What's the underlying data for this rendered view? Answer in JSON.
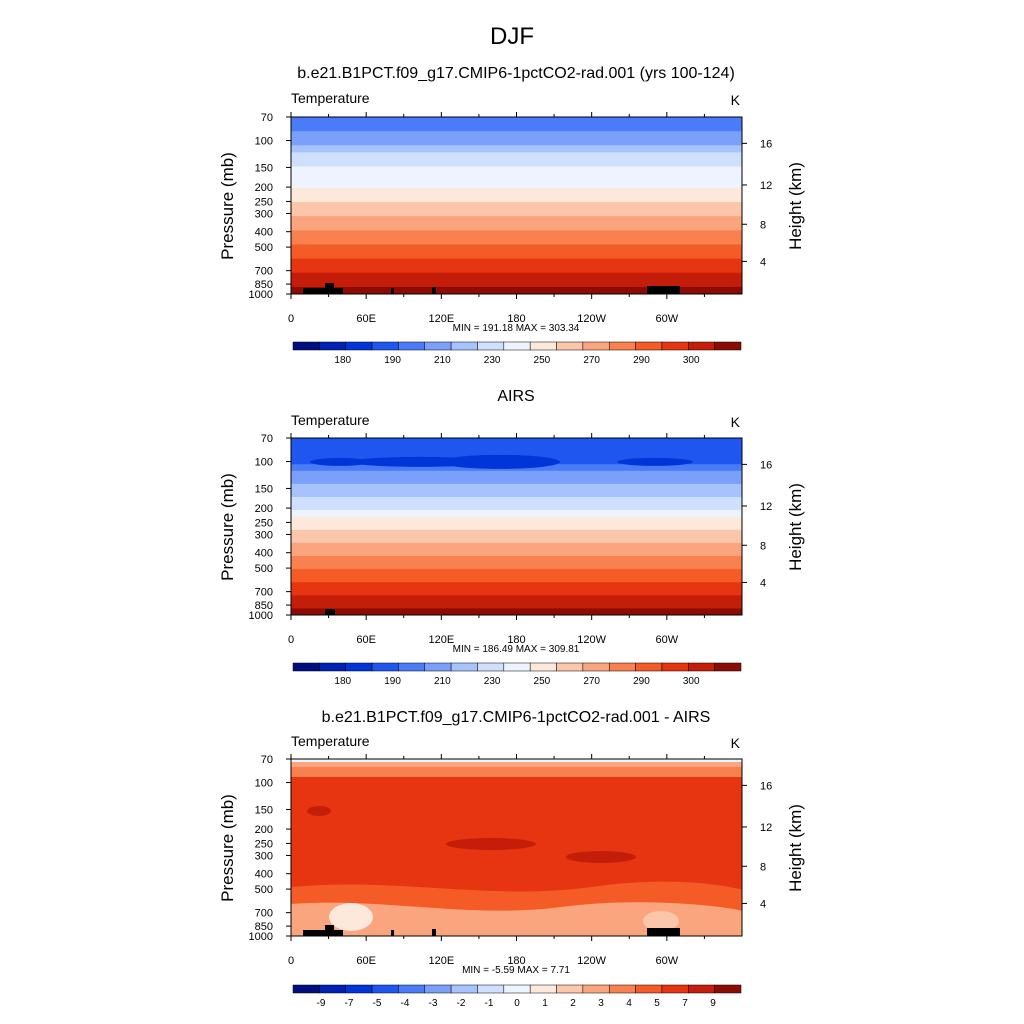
{
  "figure": {
    "title": "DJF"
  },
  "colors": {
    "temp_levels": [
      "#000f7f",
      "#0022b4",
      "#0036d8",
      "#1f56f0",
      "#4a7cfa",
      "#7aa0fc",
      "#a7c3fd",
      "#cfe0fe",
      "#eef4ff",
      "#fde8dc",
      "#fcc6aa",
      "#fba57e",
      "#f9814f",
      "#f45b26",
      "#e63510",
      "#c41e0a",
      "#8c0c05"
    ],
    "diff_levels": [
      "#000f7f",
      "#0022b4",
      "#0036d8",
      "#1f56f0",
      "#4a7cfa",
      "#7aa0fc",
      "#a7c3fd",
      "#cfe0fe",
      "#eef4ff",
      "#fde8dc",
      "#fcc6aa",
      "#fba57e",
      "#f9814f",
      "#f45b26",
      "#e63510",
      "#c41e0a",
      "#8c0c05"
    ],
    "terrain": "#000000"
  },
  "chart_data": [
    {
      "type": "heatmap",
      "title": "b.e21.B1PCT.f09_g17.CMIP6-1pctCO2-rad.001 (yrs 100-124)",
      "left_label": "Temperature",
      "right_label": "K",
      "ylabel": "Pressure (mb)",
      "y2label": "Height (km)",
      "stats": "MIN = 191.18  MAX = 303.34",
      "x_ticks": [
        "0",
        "60E",
        "120E",
        "180",
        "120W",
        "60W"
      ],
      "y_ticks": [
        "70",
        "100",
        "150",
        "200",
        "250",
        "300",
        "400",
        "500",
        "700",
        "850",
        "1000"
      ],
      "y2_ticks": [
        "16",
        "12",
        "8",
        "4"
      ],
      "colorbar_labels": [
        "180",
        "190",
        "210",
        "230",
        "250",
        "270",
        "290",
        "300"
      ],
      "band_levels": [
        4,
        4,
        5,
        5,
        6,
        7,
        7,
        8,
        8,
        8,
        9,
        9,
        10,
        10,
        11,
        11,
        12,
        12,
        13,
        13,
        14,
        14,
        15,
        15,
        16
      ]
    },
    {
      "type": "heatmap",
      "title": "AIRS",
      "left_label": "Temperature",
      "right_label": "K",
      "ylabel": "Pressure (mb)",
      "y2label": "Height (km)",
      "stats": "MIN = 186.49  MAX = 309.81",
      "x_ticks": [
        "0",
        "60E",
        "120E",
        "180",
        "120W",
        "60W"
      ],
      "y_ticks": [
        "70",
        "100",
        "150",
        "200",
        "250",
        "300",
        "400",
        "500",
        "700",
        "850",
        "1000"
      ],
      "y2_ticks": [
        "16",
        "12",
        "8",
        "4"
      ],
      "colorbar_labels": [
        "180",
        "190",
        "210",
        "230",
        "250",
        "270",
        "290",
        "300"
      ],
      "band_levels": [
        3,
        3,
        3,
        3,
        4,
        5,
        5,
        6,
        6,
        7,
        7,
        8,
        9,
        9,
        10,
        10,
        11,
        11,
        12,
        12,
        13,
        13,
        14,
        14,
        15,
        15,
        16
      ]
    },
    {
      "type": "heatmap",
      "title": "b.e21.B1PCT.f09_g17.CMIP6-1pctCO2-rad.001 - AIRS",
      "left_label": "Temperature",
      "right_label": "K",
      "ylabel": "Pressure (mb)",
      "y2label": "Height (km)",
      "stats": "MIN =  -5.59  MAX =   7.71",
      "x_ticks": [
        "0",
        "60E",
        "120E",
        "180",
        "120W",
        "60W"
      ],
      "y_ticks": [
        "70",
        "100",
        "150",
        "200",
        "250",
        "300",
        "400",
        "500",
        "700",
        "850",
        "1000"
      ],
      "y2_ticks": [
        "16",
        "12",
        "8",
        "4"
      ],
      "colorbar_labels": [
        "-9",
        "-7",
        "-5",
        "-4",
        "-3",
        "-2",
        "-1",
        "0",
        "1",
        "2",
        "3",
        "4",
        "5",
        "7",
        "9"
      ]
    }
  ]
}
